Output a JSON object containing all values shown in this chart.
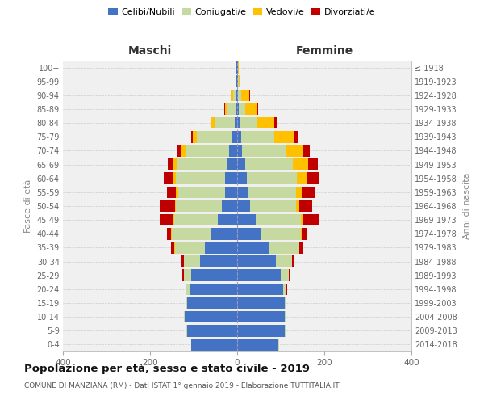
{
  "age_groups": [
    "0-4",
    "5-9",
    "10-14",
    "15-19",
    "20-24",
    "25-29",
    "30-34",
    "35-39",
    "40-44",
    "45-49",
    "50-54",
    "55-59",
    "60-64",
    "65-69",
    "70-74",
    "75-79",
    "80-84",
    "85-89",
    "90-94",
    "95-99",
    "100+"
  ],
  "birth_years": [
    "2014-2018",
    "2009-2013",
    "2004-2008",
    "1999-2003",
    "1994-1998",
    "1989-1993",
    "1984-1988",
    "1979-1983",
    "1974-1978",
    "1969-1973",
    "1964-1968",
    "1959-1963",
    "1954-1958",
    "1949-1953",
    "1944-1948",
    "1939-1943",
    "1934-1938",
    "1929-1933",
    "1924-1928",
    "1919-1923",
    "≤ 1918"
  ],
  "males": {
    "celibi": [
      105,
      115,
      120,
      115,
      110,
      105,
      85,
      75,
      60,
      45,
      35,
      28,
      28,
      22,
      18,
      12,
      6,
      4,
      2,
      1,
      1
    ],
    "coniugati": [
      1,
      2,
      2,
      3,
      8,
      18,
      38,
      68,
      90,
      100,
      105,
      108,
      112,
      115,
      100,
      80,
      45,
      18,
      8,
      2,
      1
    ],
    "vedovi": [
      0,
      0,
      0,
      0,
      0,
      0,
      0,
      1,
      1,
      2,
      3,
      5,
      8,
      10,
      12,
      10,
      8,
      6,
      4,
      1,
      0
    ],
    "divorziati": [
      0,
      0,
      0,
      0,
      1,
      2,
      5,
      8,
      10,
      30,
      35,
      20,
      20,
      12,
      8,
      3,
      2,
      1,
      0,
      0,
      0
    ]
  },
  "females": {
    "nubili": [
      95,
      110,
      110,
      110,
      105,
      100,
      88,
      72,
      55,
      42,
      30,
      25,
      22,
      18,
      12,
      10,
      6,
      4,
      2,
      1,
      1
    ],
    "coniugate": [
      1,
      2,
      2,
      3,
      8,
      18,
      38,
      70,
      92,
      105,
      105,
      110,
      115,
      110,
      100,
      75,
      40,
      15,
      8,
      2,
      1
    ],
    "vedove": [
      0,
      0,
      0,
      0,
      0,
      1,
      0,
      1,
      2,
      5,
      8,
      15,
      22,
      35,
      40,
      45,
      40,
      28,
      18,
      3,
      1
    ],
    "divorziate": [
      0,
      0,
      0,
      0,
      1,
      1,
      3,
      8,
      12,
      35,
      30,
      30,
      28,
      22,
      15,
      8,
      5,
      2,
      1,
      0,
      0
    ]
  },
  "colors": {
    "celibi": "#4472c4",
    "coniugati": "#c5d9a0",
    "vedovi": "#ffc000",
    "divorziati": "#c00000"
  },
  "legend_labels": [
    "Celibi/Nubili",
    "Coniugati/e",
    "Vedovi/e",
    "Divorziati/e"
  ],
  "title": "Popolazione per età, sesso e stato civile - 2019",
  "subtitle": "COMUNE DI MANZIANA (RM) - Dati ISTAT 1° gennaio 2019 - Elaborazione TUTTITALIA.IT",
  "label_maschi": "Maschi",
  "label_femmine": "Femmine",
  "ylabel_left": "Fasce di età",
  "ylabel_right": "Anni di nascita",
  "xlim": 400,
  "bg_color": "#f0f0f0",
  "bar_height": 0.85
}
